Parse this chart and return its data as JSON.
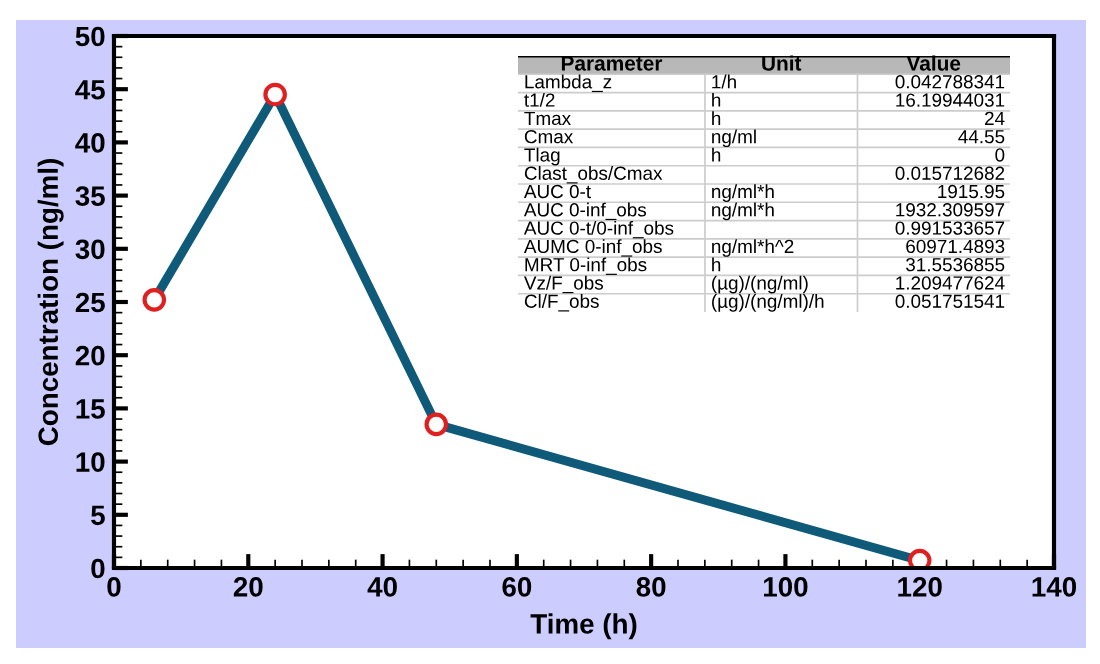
{
  "chart_data": [
    {
      "type": "line",
      "xlabel": "Time (h)",
      "ylabel": "Concentration (ng/ml)",
      "x": [
        6,
        24,
        48,
        120
      ],
      "series": [
        {
          "color": "#0f5a78",
          "values": [
            25.2,
            44.5,
            13.5,
            0.7
          ]
        }
      ],
      "marker": "circle",
      "line_style": "solid",
      "grid": false,
      "legend": false,
      "xlim": [
        0,
        140
      ],
      "xticks": [
        0,
        20,
        40,
        60,
        80,
        100,
        120,
        140
      ],
      "ylim": [
        0,
        50
      ],
      "yticks": [
        0,
        5,
        10,
        15,
        20,
        25,
        30,
        35,
        40,
        45,
        50
      ]
    },
    {
      "type": "other",
      "categories": [
        "Parameter",
        "Unit",
        "Value"
      ],
      "annotations": [
        "Lambda_z",
        "1/h",
        "0.042788341",
        "t1/2",
        "h",
        "16.19944031",
        "Tmax",
        "h",
        "24",
        "Cmax",
        "ng/ml",
        "44.55",
        "Tlag",
        "h",
        "0",
        "Clast_obs/Cmax",
        null,
        "0.015712682",
        "AUC 0-t",
        "ng/ml*h",
        "1915.95",
        "AUC 0-inf_obs",
        "ng/ml*h",
        "1932.309597",
        "AUC 0-t/0-inf_obs",
        null,
        "0.991533657",
        "AUMC 0-inf_obs",
        "ng/ml*h^2",
        "60971.4893",
        "MRT 0-inf_obs",
        "h",
        "31.5536855",
        "Vz/F_obs",
        "(µg)/(ng/ml)",
        "1.209477624",
        "Cl/F_obs",
        "(µg)/(ng/ml)/h",
        "0.051751541"
      ]
    }
  ]
}
